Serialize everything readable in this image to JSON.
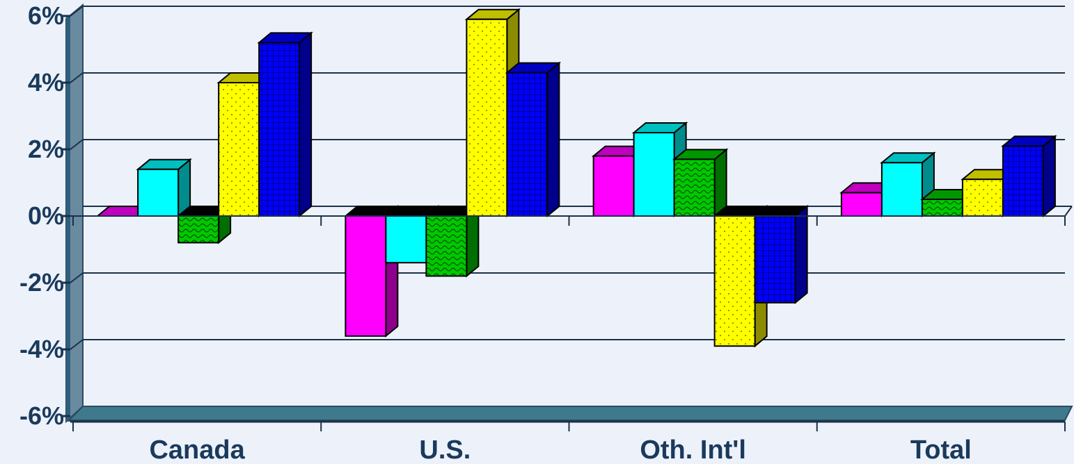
{
  "chart_data": {
    "type": "bar",
    "title": "",
    "xlabel": "",
    "ylabel": "",
    "ylim": [
      -6,
      6
    ],
    "y_ticks": [
      "6%",
      "4%",
      "2%",
      "0%",
      "-2%",
      "-4%",
      "-6%"
    ],
    "grid": true,
    "legend": "none",
    "categories": [
      "Canada",
      "U.S.",
      "Oth. Int'l",
      "Total"
    ],
    "series": [
      {
        "color": "#ff00ff",
        "values": [
          0.0,
          -3.6,
          1.8,
          0.7
        ]
      },
      {
        "color": "#00ffff",
        "values": [
          1.4,
          -1.4,
          2.5,
          1.6
        ]
      },
      {
        "color": "#00c800",
        "values": [
          -0.8,
          -1.8,
          1.7,
          0.5
        ]
      },
      {
        "color": "#ffff00",
        "values": [
          4.0,
          5.9,
          -3.9,
          1.1
        ]
      },
      {
        "color": "#0000ff",
        "values": [
          5.2,
          4.3,
          -2.6,
          2.1
        ]
      }
    ]
  }
}
